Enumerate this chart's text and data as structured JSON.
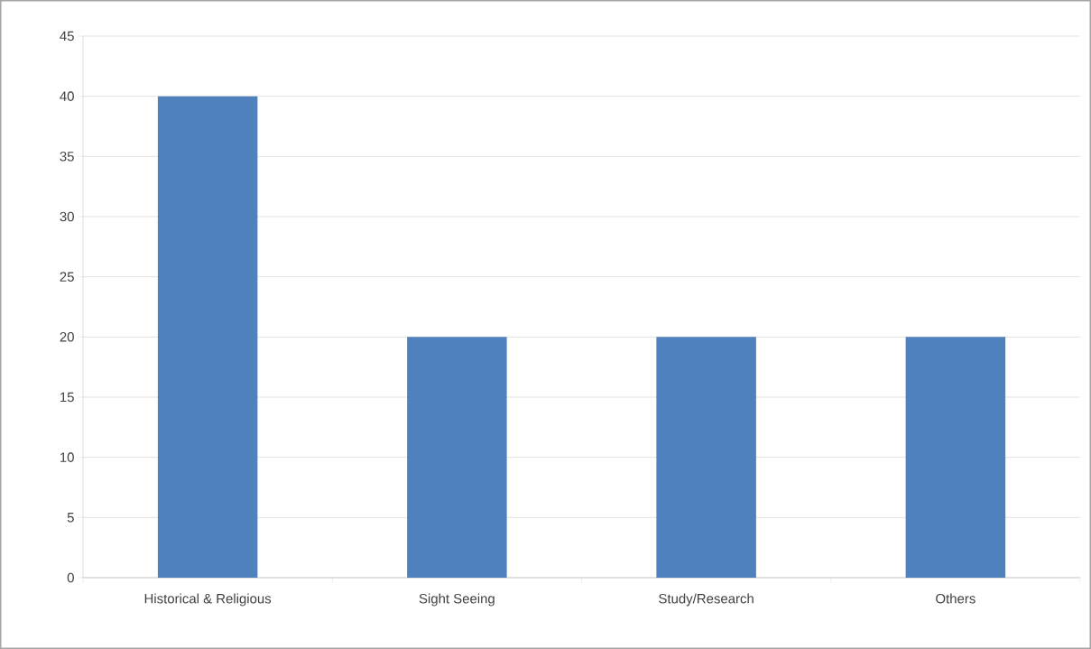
{
  "chart_data": {
    "type": "bar",
    "categories": [
      "Historical & Religious",
      "Sight Seeing",
      "Study/Research",
      "Others"
    ],
    "values": [
      40,
      20,
      20,
      20
    ],
    "color": "#4f81bd",
    "ylim": [
      0,
      45
    ],
    "yticks": [
      0,
      5,
      10,
      15,
      20,
      25,
      30,
      35,
      40,
      45
    ],
    "grid": "y"
  }
}
